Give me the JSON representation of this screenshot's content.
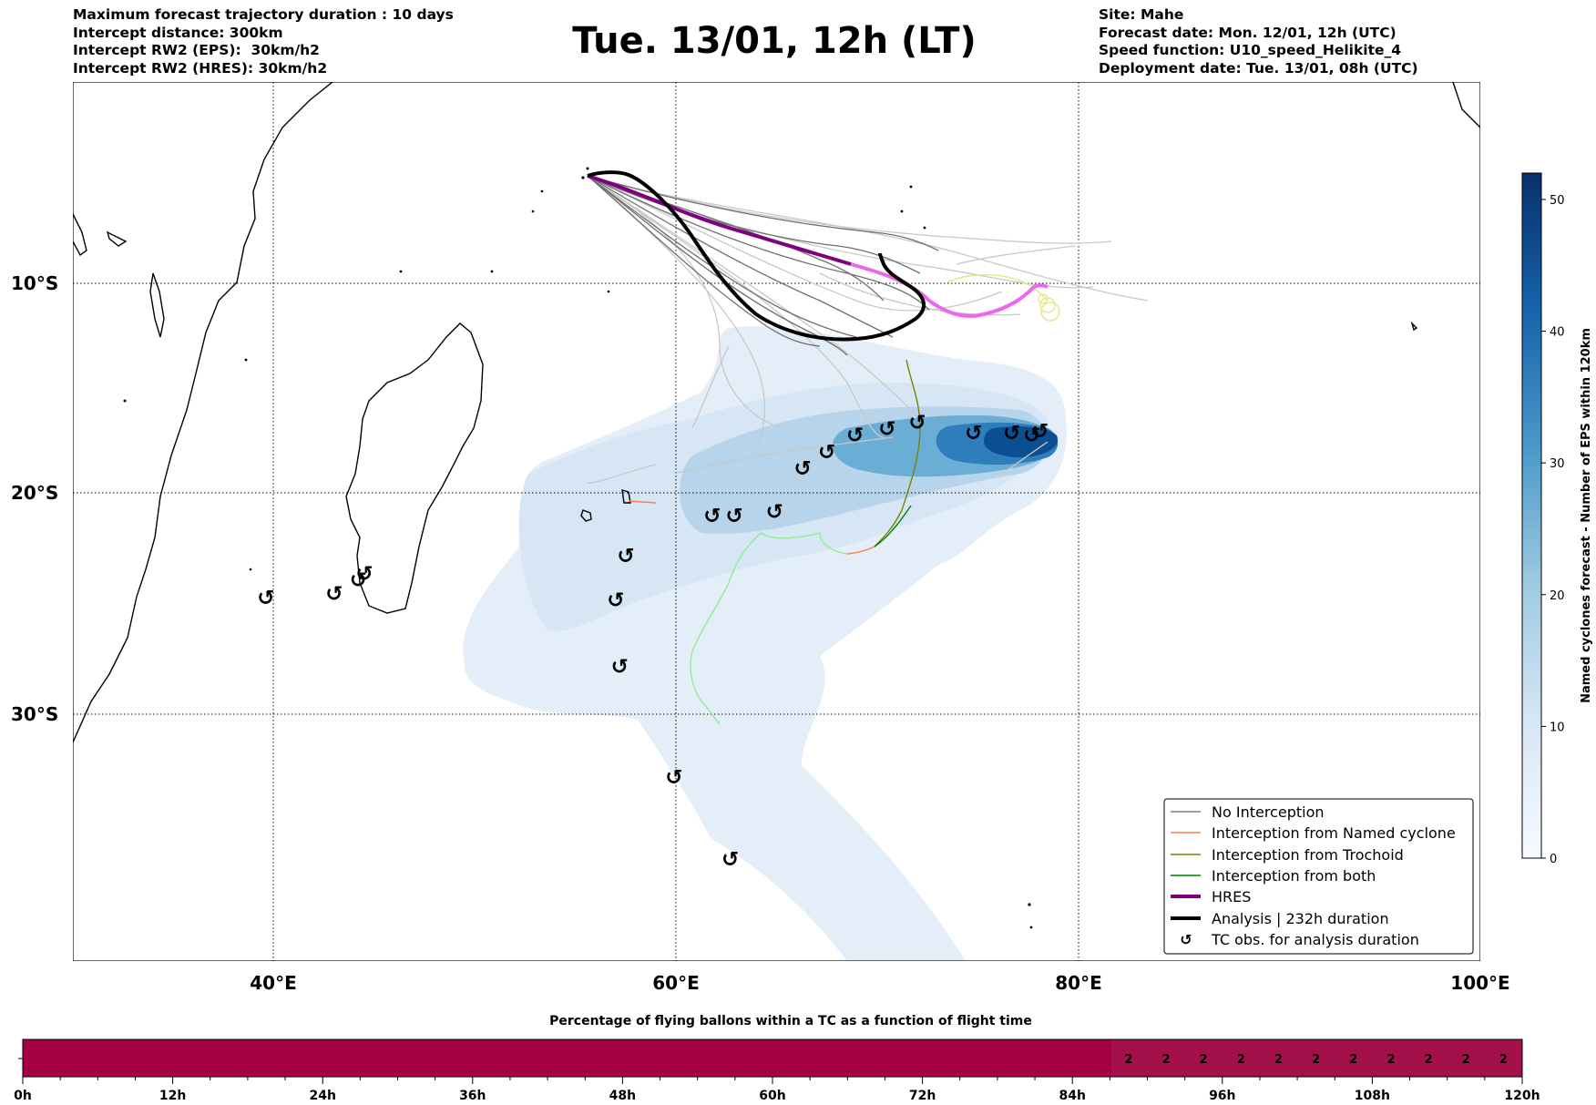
{
  "header": {
    "left": [
      "Maximum forecast trajectory duration : 10 days",
      "Intercept distance: 300km",
      "Intercept RW2 (EPS):  30km/h2",
      "Intercept RW2 (HRES): 30km/h2"
    ],
    "right": [
      "Site: Mahe",
      "Forecast date: Mon. 12/01, 12h (UTC)",
      "Speed function: U10_speed_Helikite_4",
      "Deployment date: Tue. 13/01, 08h (UTC)"
    ],
    "title": "Tue. 13/01, 12h (LT)"
  },
  "map": {
    "lat_labels": [
      "10°S",
      "20°S",
      "30°S"
    ],
    "lon_labels": [
      "40°E",
      "60°E",
      "80°E",
      "100°E"
    ],
    "tc_symbol": "↺",
    "colors": {
      "no_interception": "#7f7f7f",
      "named_cyclone": "#ff7f50",
      "trochoid": "#808000",
      "both": "#008000",
      "hres": "#800080",
      "analysis": "#000000",
      "density": "#08306b"
    }
  },
  "legend": {
    "items": [
      {
        "label": "No Interception",
        "icon": "line-grey"
      },
      {
        "label": "Interception from Named cyclone",
        "icon": "line-coral"
      },
      {
        "label": "Interception from Trochoid",
        "icon": "line-olive"
      },
      {
        "label": "Interception from both",
        "icon": "line-green"
      },
      {
        "label": "HRES",
        "icon": "line-purple-thick"
      },
      {
        "label": "Analysis | 232h duration",
        "icon": "line-black-thick"
      },
      {
        "label": "TC obs. for analysis duration",
        "icon": "tc-symbol-icon"
      }
    ]
  },
  "colorbar": {
    "label": "Named cyclones forecast - Number of EPS within 120km",
    "ticks": [
      "0",
      "10",
      "20",
      "30",
      "40",
      "50"
    ],
    "max": 52
  },
  "bottom_bar": {
    "title": "Percentage of flying ballons within a TC as a function of flight time",
    "ticks": [
      "0h",
      "12h",
      "24h",
      "36h",
      "48h",
      "60h",
      "72h",
      "84h",
      "96h",
      "108h",
      "120h"
    ],
    "cell_values": [
      "2",
      "2",
      "2",
      "2",
      "2",
      "2",
      "2",
      "2",
      "2",
      "2",
      "2"
    ],
    "colors": {
      "low": "#a50044",
      "high": "#a3104a"
    }
  },
  "chart_data": {
    "type": "map",
    "tc_observations": [
      {
        "lon": 39.6,
        "lat": -24.8
      },
      {
        "lon": 43.0,
        "lat": -24.6
      },
      {
        "lon": 44.2,
        "lat": -24.0
      },
      {
        "lon": 44.5,
        "lat": -23.7
      },
      {
        "lon": 57.0,
        "lat": -24.9
      },
      {
        "lon": 57.2,
        "lat": -27.9
      },
      {
        "lon": 57.5,
        "lat": -22.9
      },
      {
        "lon": 59.9,
        "lat": -32.9
      },
      {
        "lon": 61.8,
        "lat": -21.1
      },
      {
        "lon": 62.9,
        "lat": -21.1
      },
      {
        "lon": 62.7,
        "lat": -36.6
      },
      {
        "lon": 64.9,
        "lat": -20.9
      },
      {
        "lon": 66.3,
        "lat": -18.9
      },
      {
        "lon": 67.5,
        "lat": -18.1
      },
      {
        "lon": 68.9,
        "lat": -17.3
      },
      {
        "lon": 70.5,
        "lat": -17.0
      },
      {
        "lon": 72.0,
        "lat": -16.7
      },
      {
        "lon": 74.8,
        "lat": -17.2
      },
      {
        "lon": 76.7,
        "lat": -17.2
      },
      {
        "lon": 77.7,
        "lat": -17.3
      },
      {
        "lon": 78.1,
        "lat": -17.1
      }
    ]
  }
}
